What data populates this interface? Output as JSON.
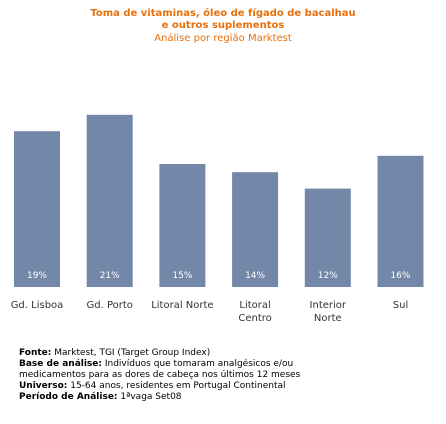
{
  "chart_data": {
    "type": "bar",
    "title": [
      "Toma de vitaminas, óleo de fígado de bacalhau",
      "e outros suplementos"
    ],
    "subtitle": "Análise por região Marktest",
    "categories": [
      [
        "Gd. Lisboa"
      ],
      [
        "Gd. Porto"
      ],
      [
        "Litoral Norte"
      ],
      [
        "Litoral",
        "Centro"
      ],
      [
        "Interior",
        "Norte"
      ],
      [
        "Sul"
      ]
    ],
    "values": [
      19,
      21,
      15,
      14,
      12,
      16
    ],
    "value_labels": [
      "19%",
      "21%",
      "15%",
      "14%",
      "12%",
      "16%"
    ],
    "bar_color": "#7388a8",
    "label_color": "#ffffff",
    "title_color": "#e8700a"
  },
  "notes": [
    {
      "label": "Fonte:",
      "text": " Marktest, TGI (Target Group Index)"
    },
    {
      "label": "Base de análise:",
      "text": " Indivíduos que tomaram analgésicos e/ou"
    },
    {
      "label": "",
      "text": "medicamentos para as dores de cabeça nos últimos 12 meses"
    },
    {
      "label": "Universo:",
      "text": " 15-64 anos, residentes em Portugal Continental"
    },
    {
      "label": "Período de Análise:",
      "text": " 1ªvaga Set08"
    }
  ]
}
